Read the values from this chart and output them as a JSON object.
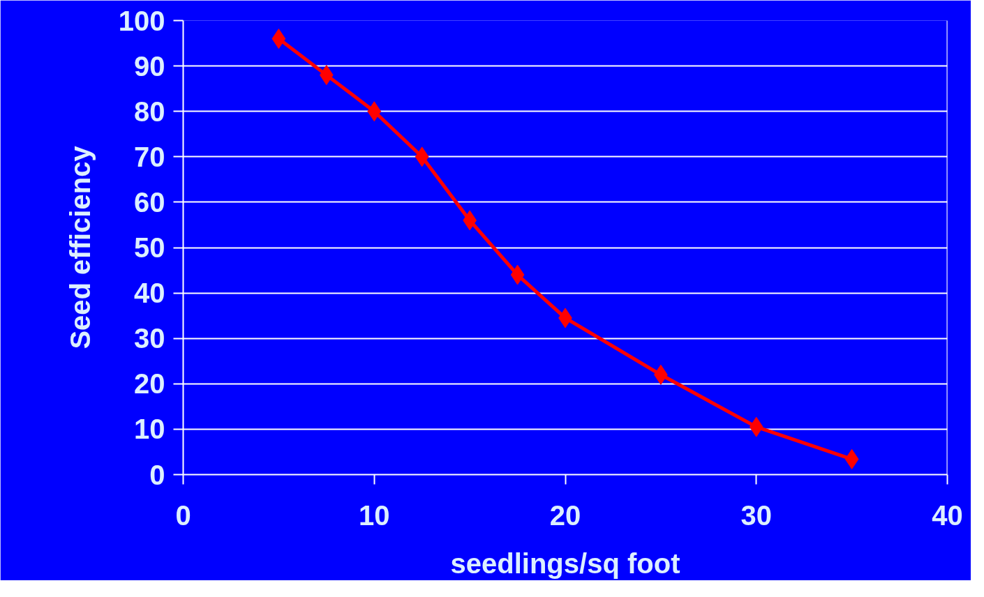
{
  "chart_data": {
    "type": "line",
    "xlabel": "seedlings/sq foot",
    "ylabel": "Seed efficiency",
    "x": [
      5,
      7.5,
      10,
      12.5,
      15,
      17.5,
      20,
      25,
      30,
      35
    ],
    "series": [
      {
        "color": "#ff0000",
        "values": [
          96,
          88,
          80,
          70,
          56,
          44,
          34.5,
          22,
          10.5,
          3.4
        ]
      }
    ],
    "xlim": [
      0,
      40
    ],
    "xticks": [
      0,
      10,
      20,
      30,
      40
    ],
    "ylim": [
      0,
      100
    ],
    "yticks": [
      0,
      10,
      20,
      30,
      40,
      50,
      60,
      70,
      80,
      90,
      100
    ],
    "grid": "y",
    "marker": "diamond",
    "line_style": "solid"
  }
}
